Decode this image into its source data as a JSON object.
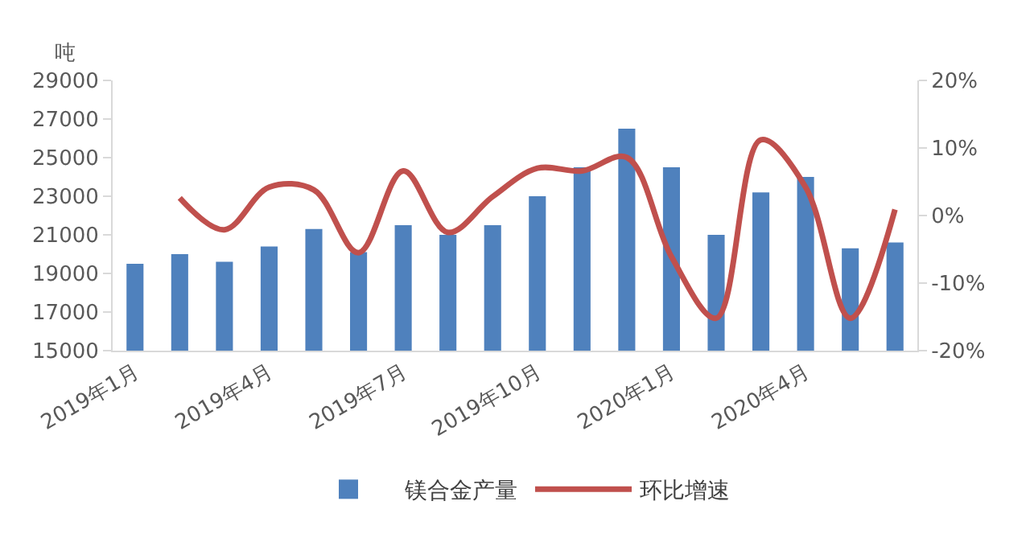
{
  "chart_data": {
    "type": "bar",
    "ylabel": "吨",
    "categories": [
      "2019年1月",
      null,
      null,
      "2019年4月",
      null,
      null,
      "2019年7月",
      null,
      null,
      "2019年10月",
      null,
      null,
      "2020年1月",
      null,
      null,
      "2020年4月",
      null,
      null
    ],
    "series": [
      {
        "name": "镁合金产量",
        "color": "#4f81bd",
        "values": [
          19500,
          20000,
          19600,
          20400,
          21300,
          20100,
          21500,
          21000,
          21500,
          23000,
          24500,
          26500,
          24500,
          21000,
          23200,
          24000,
          20300,
          20600
        ]
      },
      {
        "name": "环比增速",
        "type": "line",
        "axis": "y2",
        "color": "#c0504d",
        "values": [
          null,
          2.6,
          -2.1,
          4.2,
          3.8,
          -5.5,
          6.6,
          -2.5,
          2.8,
          7.0,
          6.6,
          8.6,
          -6.1,
          -15.2,
          11.2,
          4.2,
          -15.2,
          0.9
        ]
      }
    ],
    "ylim": [
      15000,
      29000
    ],
    "yticks": [
      15000,
      17000,
      19000,
      21000,
      23000,
      25000,
      27000,
      29000
    ],
    "y2lim": [
      -20,
      20
    ],
    "y2ticks": [
      {
        "value": -20,
        "label": "-20%"
      },
      {
        "value": -10,
        "label": "-10%"
      },
      {
        "value": 0,
        "label": "0%"
      },
      {
        "value": 10,
        "label": "10%"
      },
      {
        "value": 20,
        "label": "20%"
      }
    ],
    "legend": "bottom"
  }
}
